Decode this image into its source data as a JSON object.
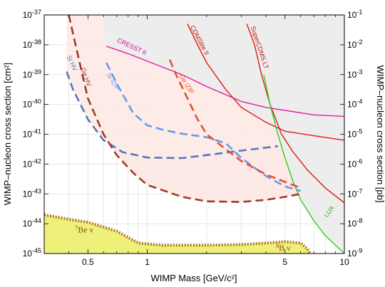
{
  "chart_data": {
    "type": "line",
    "xlabel": "WIMP Mass [GeV/c²]",
    "ylabel_left": "WIMP–nucleon cross section [cm²]",
    "ylabel_right": "WIMP–nucleon cross section [pb]",
    "x_scale": "log",
    "y_scale": "log",
    "xlim": [
      0.3,
      10
    ],
    "ylim_cm2": [
      1e-45,
      1e-37
    ],
    "ylim_pb": [
      1e-09,
      0.1
    ],
    "grid": true,
    "x_tick_labels": [
      {
        "value": 0.5,
        "label": "0.5"
      },
      {
        "value": 1,
        "label": "1"
      },
      {
        "value": 5,
        "label": "5"
      },
      {
        "value": 10,
        "label": "10"
      }
    ],
    "y_left_tick_labels": [
      {
        "exp": -37,
        "label": "10-37"
      },
      {
        "exp": -38,
        "label": "10-38"
      },
      {
        "exp": -39,
        "label": "10-39"
      },
      {
        "exp": -40,
        "label": "10-40"
      },
      {
        "exp": -41,
        "label": "10-41"
      },
      {
        "exp": -42,
        "label": "10-42"
      },
      {
        "exp": -43,
        "label": "10-43"
      },
      {
        "exp": -44,
        "label": "10-44"
      },
      {
        "exp": -45,
        "label": "10-45"
      }
    ],
    "y_right_tick_labels": [
      {
        "exp": -37,
        "label": "10-1"
      },
      {
        "exp": -38,
        "label": "10-2"
      },
      {
        "exp": -39,
        "label": "10-3"
      },
      {
        "exp": -40,
        "label": "10-4"
      },
      {
        "exp": -41,
        "label": "10-5"
      },
      {
        "exp": -42,
        "label": "10-6"
      },
      {
        "exp": -43,
        "label": "10-7"
      },
      {
        "exp": -44,
        "label": "10-8"
      },
      {
        "exp": -45,
        "label": "10-9"
      }
    ],
    "series": [
      {
        "name": "CRESST II",
        "color": "#e020a0",
        "style": "solid",
        "points": [
          [
            0.62,
            -38.05
          ],
          [
            0.8,
            -38.3
          ],
          [
            1.0,
            -38.55
          ],
          [
            1.5,
            -39.0
          ],
          [
            2.0,
            -39.4
          ],
          [
            3.0,
            -39.9
          ],
          [
            4.0,
            -40.1
          ],
          [
            5.0,
            -40.2
          ],
          [
            7.0,
            -40.35
          ],
          [
            10.0,
            -40.4
          ]
        ]
      },
      {
        "name": "CDMSlite II",
        "color": "#dd1a10",
        "style": "solid",
        "points": [
          [
            1.6,
            -37.3
          ],
          [
            1.8,
            -38.0
          ],
          [
            2.0,
            -38.6
          ],
          [
            2.5,
            -39.5
          ],
          [
            3.0,
            -40.1
          ],
          [
            4.0,
            -40.6
          ],
          [
            5.0,
            -40.9
          ],
          [
            7.0,
            -41.05
          ],
          [
            10.0,
            -41.2
          ]
        ]
      },
      {
        "name": "SuperCDMS LT",
        "color": "#dd1a10",
        "style": "solid",
        "points": [
          [
            3.2,
            -37.3
          ],
          [
            3.5,
            -38.0
          ],
          [
            3.8,
            -39.0
          ],
          [
            4.2,
            -40.0
          ],
          [
            4.8,
            -41.0
          ],
          [
            5.5,
            -41.6
          ],
          [
            6.5,
            -42.2
          ],
          [
            8.0,
            -42.8
          ],
          [
            10.0,
            -43.3
          ]
        ]
      },
      {
        "name": "LUX",
        "color": "#33cc22",
        "style": "solid",
        "points": [
          [
            3.9,
            -39.0
          ],
          [
            4.2,
            -40.0
          ],
          [
            4.6,
            -41.0
          ],
          [
            5.0,
            -41.8
          ],
          [
            5.5,
            -42.6
          ],
          [
            6.0,
            -43.2
          ],
          [
            7.0,
            -43.9
          ],
          [
            8.0,
            -44.4
          ],
          [
            10.0,
            -45.0
          ]
        ]
      },
      {
        "name": "Si HV",
        "color": "#5577c0",
        "style": "dashed",
        "points": [
          [
            0.39,
            -38.9
          ],
          [
            0.42,
            -39.5
          ],
          [
            0.5,
            -40.5
          ],
          [
            0.6,
            -41.2
          ],
          [
            0.75,
            -41.6
          ],
          [
            1.0,
            -41.78
          ],
          [
            1.5,
            -41.8
          ],
          [
            2.0,
            -41.7
          ],
          [
            3.0,
            -41.55
          ],
          [
            4.0,
            -41.45
          ],
          [
            4.6,
            -41.4
          ]
        ]
      },
      {
        "name": "Ge HV",
        "color": "#a03a2a",
        "style": "dashed",
        "points": [
          [
            0.4,
            -37.0
          ],
          [
            0.45,
            -38.5
          ],
          [
            0.5,
            -39.8
          ],
          [
            0.6,
            -41.0
          ],
          [
            0.7,
            -41.7
          ],
          [
            0.85,
            -42.3
          ],
          [
            1.0,
            -42.7
          ],
          [
            1.5,
            -43.1
          ],
          [
            2.0,
            -43.25
          ],
          [
            3.0,
            -43.27
          ],
          [
            4.0,
            -43.2
          ],
          [
            5.0,
            -43.1
          ],
          [
            6.0,
            -43.0
          ]
        ]
      },
      {
        "name": "Si iZIP",
        "color": "#6699ee",
        "style": "dashed",
        "points": [
          [
            0.62,
            -38.6
          ],
          [
            0.7,
            -39.3
          ],
          [
            0.85,
            -40.3
          ],
          [
            1.0,
            -40.7
          ],
          [
            1.2,
            -40.85
          ],
          [
            1.5,
            -40.98
          ],
          [
            2.0,
            -41.1
          ],
          [
            2.5,
            -41.3
          ],
          [
            3.0,
            -41.8
          ],
          [
            4.0,
            -42.4
          ],
          [
            5.0,
            -42.75
          ],
          [
            6.0,
            -42.9
          ]
        ]
      },
      {
        "name": "Ge iZIP",
        "color": "#e85030",
        "style": "dashed",
        "points": [
          [
            1.3,
            -38.5
          ],
          [
            1.4,
            -39.0
          ],
          [
            1.6,
            -39.8
          ],
          [
            1.8,
            -40.5
          ],
          [
            2.0,
            -41.0
          ],
          [
            2.5,
            -41.5
          ],
          [
            3.0,
            -41.9
          ],
          [
            4.0,
            -42.35
          ],
          [
            5.0,
            -42.6
          ],
          [
            6.0,
            -42.8
          ]
        ]
      }
    ],
    "neutrino_floor": {
      "color": "#eef07a",
      "border_color": "#b07820",
      "points": [
        [
          0.3,
          -43.7
        ],
        [
          0.4,
          -43.85
        ],
        [
          0.5,
          -43.95
        ],
        [
          0.7,
          -44.25
        ],
        [
          0.9,
          -44.65
        ],
        [
          1.2,
          -44.72
        ],
        [
          2.0,
          -44.72
        ],
        [
          3.0,
          -44.7
        ],
        [
          4.0,
          -44.65
        ],
        [
          5.0,
          -44.6
        ],
        [
          6.0,
          -44.65
        ],
        [
          6.5,
          -44.85
        ],
        [
          6.7,
          -45.0
        ]
      ]
    },
    "labels": {
      "cresst": "CRESST II",
      "cdmslite": "CDMSlite II",
      "supercdms": "SuperCDMS LT",
      "lux": "LUX",
      "si_hv": "Si HV",
      "ge_hv": "Ge HV",
      "si_izip": "Si iZIP",
      "ge_izip": "Ge iZIP",
      "be7_mass": "7",
      "be7_text": "Be ν",
      "b8_mass": "8",
      "b8_text": "B ν"
    }
  }
}
